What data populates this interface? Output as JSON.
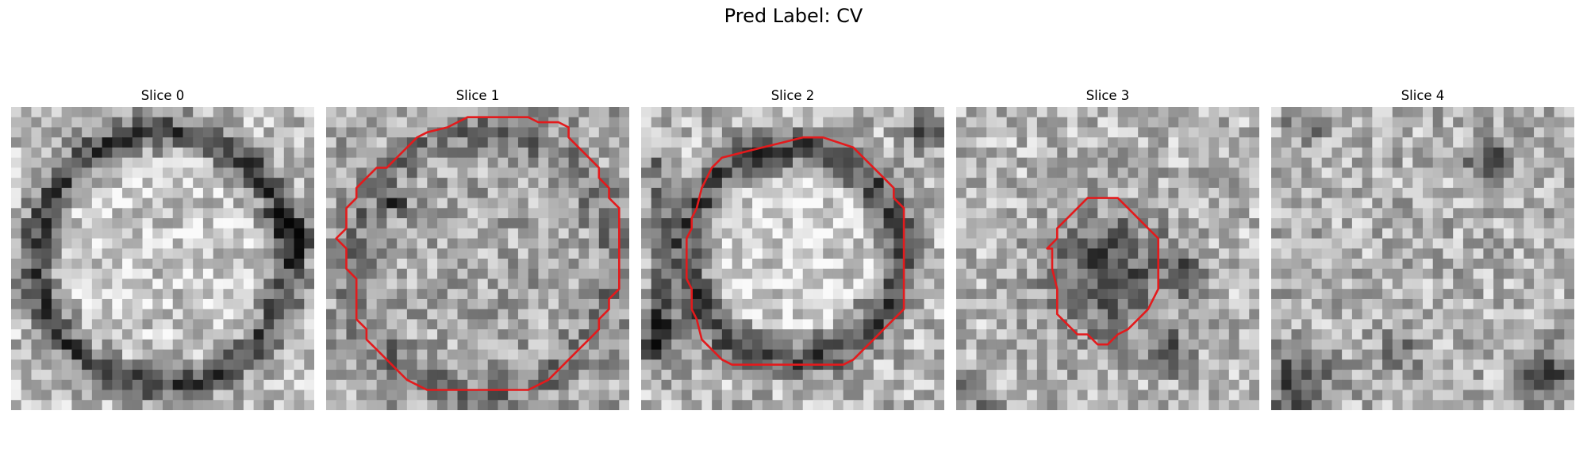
{
  "figure": {
    "title": "Pred Label: CV"
  },
  "panels": [
    {
      "title": "Slice 0",
      "texture": "ring",
      "contour": null
    },
    {
      "title": "Slice 1",
      "texture": "large-disk",
      "contour": [
        [
          14,
          1
        ],
        [
          20,
          1
        ],
        [
          21,
          1.5
        ],
        [
          23,
          1.5
        ],
        [
          24,
          2
        ],
        [
          24,
          3
        ],
        [
          25,
          4
        ],
        [
          26,
          5
        ],
        [
          27,
          6
        ],
        [
          27,
          7
        ],
        [
          28,
          8
        ],
        [
          28,
          9
        ],
        [
          29,
          10
        ],
        [
          29,
          18
        ],
        [
          28,
          19
        ],
        [
          28,
          20
        ],
        [
          27,
          21
        ],
        [
          27,
          22
        ],
        [
          26,
          23
        ],
        [
          25,
          24
        ],
        [
          24,
          25
        ],
        [
          23,
          26
        ],
        [
          22,
          27
        ],
        [
          21,
          27.5
        ],
        [
          20,
          28
        ],
        [
          10,
          28
        ],
        [
          9,
          27.5
        ],
        [
          8,
          27
        ],
        [
          7,
          26
        ],
        [
          6,
          25
        ],
        [
          5,
          24
        ],
        [
          4,
          23
        ],
        [
          4,
          22
        ],
        [
          3,
          21
        ],
        [
          3,
          17
        ],
        [
          2,
          16
        ],
        [
          2,
          14
        ],
        [
          1,
          13
        ],
        [
          2,
          12
        ],
        [
          2,
          10
        ],
        [
          3,
          9
        ],
        [
          3,
          8
        ],
        [
          4,
          7
        ],
        [
          5,
          6
        ],
        [
          6,
          6
        ],
        [
          7,
          5
        ],
        [
          8,
          4
        ],
        [
          9,
          3
        ],
        [
          10,
          2.5
        ],
        [
          12,
          2
        ],
        [
          13,
          1.5
        ]
      ]
    },
    {
      "title": "Slice 2",
      "texture": "medium-disk",
      "contour": [
        [
          8,
          5
        ],
        [
          10,
          4.5
        ],
        [
          12,
          4
        ],
        [
          14,
          3.5
        ],
        [
          16,
          3
        ],
        [
          18,
          3
        ],
        [
          21,
          4
        ],
        [
          22,
          5
        ],
        [
          23,
          6
        ],
        [
          24,
          7
        ],
        [
          25,
          8
        ],
        [
          25,
          9
        ],
        [
          26,
          10
        ],
        [
          26,
          20
        ],
        [
          25,
          21
        ],
        [
          24,
          22
        ],
        [
          23,
          23
        ],
        [
          22,
          24
        ],
        [
          21,
          25
        ],
        [
          20,
          25.5
        ],
        [
          9,
          25.5
        ],
        [
          8,
          25
        ],
        [
          7,
          24
        ],
        [
          6,
          23
        ],
        [
          5.5,
          21
        ],
        [
          5,
          20
        ],
        [
          5,
          18
        ],
        [
          4.5,
          17
        ],
        [
          4.5,
          13
        ],
        [
          5,
          12
        ],
        [
          5,
          11
        ],
        [
          5.5,
          10
        ],
        [
          6,
          8
        ],
        [
          7,
          6
        ]
      ]
    },
    {
      "title": "Slice 3",
      "texture": "small-dark-blob",
      "contour": [
        [
          13,
          9
        ],
        [
          16,
          9
        ],
        [
          17,
          10
        ],
        [
          18,
          11
        ],
        [
          19,
          12
        ],
        [
          20,
          13
        ],
        [
          20,
          18
        ],
        [
          19,
          20
        ],
        [
          18,
          21
        ],
        [
          17,
          22
        ],
        [
          16,
          22.5
        ],
        [
          15,
          23.5
        ],
        [
          14,
          23.5
        ],
        [
          13,
          22.5
        ],
        [
          12,
          22.5
        ],
        [
          11,
          21.5
        ],
        [
          10,
          20.5
        ],
        [
          10,
          18
        ],
        [
          9.5,
          16
        ],
        [
          9.5,
          14
        ],
        [
          9,
          14
        ],
        [
          10,
          13
        ],
        [
          10,
          12
        ],
        [
          11,
          11
        ],
        [
          12,
          10
        ]
      ]
    },
    {
      "title": "Slice 4",
      "texture": "noise",
      "contour": null
    }
  ],
  "colors": {
    "contour": "#e31a1c",
    "text": "#000000"
  }
}
